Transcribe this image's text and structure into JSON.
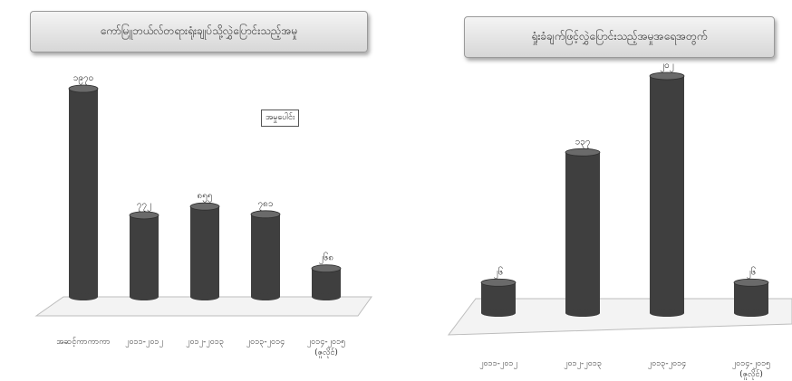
{
  "chart_data": [
    {
      "type": "bar",
      "title": "ကော်မြူဘယ်လ်တရားရုံးချုပ်သို့လွှဲပြောင်းသည့်အမှု",
      "categories": [
        "အဆင့်ကာကာကာ",
        "၂၀၁၁-၂၀၁၂",
        "၂၀၁၂-၂၀၁၃",
        "၂၀၁၃-၂၀၁၄",
        "၂၀၁၄-၂၀၁၅ (ဇူလိုင်)"
      ],
      "series": [
        {
          "name": "အမှုပေါင်း",
          "values": [
            1970,
            772,
            855,
            781,
            268
          ],
          "value_labels": [
            "၁၉၇၀",
            "၇၇၂",
            "၈၅၅",
            "၇၈၁",
            "၂၆၈"
          ]
        }
      ],
      "legend": "center-right",
      "grid": false
    },
    {
      "type": "bar",
      "title": "ရှုံးခံချက်ဖြင့်လွှဲပြောင်းသည့်အမှုအရေအတွက်",
      "categories": [
        "၂၀၁၁-၂၀၁၂",
        "၂၀၁၂-၂၀၁၃",
        "၂၀၁၃-၂၀၁၄",
        "၂၀၁၄-၂၀၁၅ (ဇူလိုင်)"
      ],
      "series": [
        {
          "values": [
            26,
            137,
            202,
            26
          ],
          "value_labels": [
            "၂၆",
            "၁၃၇",
            "၂၀၂",
            "၂၆"
          ]
        }
      ],
      "grid": false
    }
  ],
  "colors": {
    "bar_fill": "#3f3f3f",
    "bar_top": "#6a6a6a",
    "floor": "#f3f3f3",
    "floor_edge": "#bdbdbd",
    "title_bg": "#e6e6e6"
  }
}
